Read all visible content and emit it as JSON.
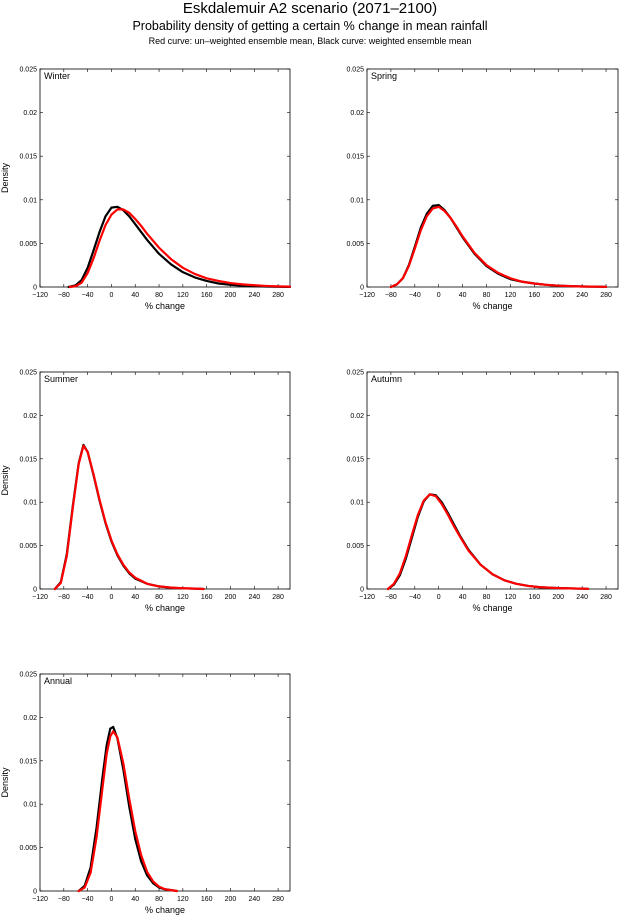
{
  "title": "Eskdalemuir A2 scenario (2071–2100)",
  "subtitle": "Probability density of getting a certain % change in mean rainfall",
  "note": "Red curve: un–weighted ensemble mean, Black curve: weighted ensemble mean",
  "colors": {
    "unweighted": "#ff0000",
    "weighted": "#000000",
    "axes": "#000000"
  },
  "chart_data": [
    {
      "type": "line",
      "panel_label": "Winter",
      "xlabel": "% change",
      "ylabel": "Density",
      "xlim": [
        -120,
        300
      ],
      "ylim": [
        0,
        0.025
      ],
      "xticks": [
        "−120",
        "−80",
        "−40",
        "0",
        "40",
        "80",
        "120",
        "160",
        "200",
        "240",
        "280"
      ],
      "yticks": [
        "0",
        "0.005",
        "0.01",
        "0.015",
        "0.02",
        "0.025"
      ],
      "series": [
        {
          "color": "#000000",
          "x": [
            -72,
            -60,
            -50,
            -40,
            -30,
            -20,
            -10,
            0,
            10,
            20,
            30,
            40,
            50,
            60,
            80,
            100,
            120,
            140,
            160,
            180,
            200,
            220,
            240,
            260,
            280,
            300
          ],
          "y": [
            0,
            0.0002,
            0.0008,
            0.0022,
            0.0042,
            0.0063,
            0.0081,
            0.0091,
            0.0092,
            0.0088,
            0.0081,
            0.0072,
            0.0063,
            0.0054,
            0.0038,
            0.0026,
            0.0017,
            0.0011,
            0.0007,
            0.0004,
            0.00025,
            0.00015,
            0.0001,
            5e-05,
            3e-05,
            1e-05
          ]
        },
        {
          "color": "#ff0000",
          "x": [
            -70,
            -60,
            -50,
            -40,
            -30,
            -20,
            -10,
            0,
            10,
            20,
            30,
            40,
            50,
            60,
            80,
            100,
            120,
            140,
            160,
            180,
            200,
            220,
            240,
            260,
            280,
            300
          ],
          "y": [
            0,
            0.0001,
            0.0005,
            0.0016,
            0.0033,
            0.0053,
            0.0071,
            0.0083,
            0.0089,
            0.0089,
            0.0085,
            0.0078,
            0.007,
            0.0061,
            0.0045,
            0.0032,
            0.0022,
            0.0015,
            0.001,
            0.0007,
            0.00045,
            0.0003,
            0.0002,
            0.00012,
            7e-05,
            4e-05
          ]
        }
      ]
    },
    {
      "type": "line",
      "panel_label": "Spring",
      "xlabel": "% change",
      "ylabel": "",
      "xlim": [
        -120,
        300
      ],
      "ylim": [
        0,
        0.025
      ],
      "xticks": [
        "−120",
        "−80",
        "−40",
        "0",
        "40",
        "80",
        "120",
        "160",
        "200",
        "240",
        "280"
      ],
      "yticks": [
        "0",
        "0.005",
        "0.01",
        "0.015",
        "0.02",
        "0.025"
      ],
      "series": [
        {
          "color": "#000000",
          "x": [
            -80,
            -70,
            -60,
            -50,
            -40,
            -30,
            -20,
            -10,
            0,
            10,
            20,
            30,
            40,
            60,
            80,
            100,
            120,
            140,
            160,
            180,
            200,
            240,
            280
          ],
          "y": [
            0,
            0.0003,
            0.001,
            0.0025,
            0.0046,
            0.0068,
            0.0084,
            0.0093,
            0.0094,
            0.0088,
            0.0079,
            0.0068,
            0.0057,
            0.0038,
            0.0024,
            0.0015,
            0.0009,
            0.0006,
            0.0004,
            0.00025,
            0.00015,
            6e-05,
            2e-05
          ]
        },
        {
          "color": "#ff0000",
          "x": [
            -80,
            -70,
            -60,
            -50,
            -40,
            -30,
            -20,
            -10,
            0,
            10,
            20,
            30,
            40,
            60,
            80,
            100,
            120,
            140,
            160,
            180,
            200,
            240,
            280
          ],
          "y": [
            0,
            0.0003,
            0.001,
            0.0024,
            0.0044,
            0.0065,
            0.0081,
            0.009,
            0.0092,
            0.0087,
            0.0079,
            0.0069,
            0.0058,
            0.0039,
            0.0025,
            0.0016,
            0.001,
            0.0006,
            0.0004,
            0.00025,
            0.00015,
            6e-05,
            2e-05
          ]
        }
      ]
    },
    {
      "type": "line",
      "panel_label": "Summer",
      "xlabel": "% change",
      "ylabel": "Density",
      "xlim": [
        -120,
        300
      ],
      "ylim": [
        0,
        0.025
      ],
      "xticks": [
        "−120",
        "−80",
        "−40",
        "0",
        "40",
        "80",
        "120",
        "160",
        "200",
        "240",
        "280"
      ],
      "yticks": [
        "0",
        "0.005",
        "0.01",
        "0.015",
        "0.02",
        "0.025"
      ],
      "series": [
        {
          "color": "#000000",
          "x": [
            -95,
            -85,
            -75,
            -65,
            -55,
            -47,
            -40,
            -30,
            -20,
            -10,
            0,
            10,
            20,
            30,
            40,
            60,
            80,
            100,
            120,
            140,
            155
          ],
          "y": [
            0,
            0.0008,
            0.004,
            0.0095,
            0.0145,
            0.0166,
            0.0158,
            0.0131,
            0.0102,
            0.0076,
            0.0055,
            0.0039,
            0.0027,
            0.0018,
            0.0012,
            0.0006,
            0.0003,
            0.00015,
            8e-05,
            4e-05,
            0
          ]
        },
        {
          "color": "#ff0000",
          "x": [
            -95,
            -85,
            -75,
            -65,
            -55,
            -47,
            -40,
            -30,
            -20,
            -10,
            0,
            10,
            20,
            30,
            40,
            60,
            80,
            100,
            120,
            140,
            155
          ],
          "y": [
            0,
            0.0007,
            0.0038,
            0.0093,
            0.0144,
            0.0165,
            0.0158,
            0.0132,
            0.0103,
            0.0077,
            0.0056,
            0.004,
            0.0028,
            0.0019,
            0.0013,
            0.0006,
            0.0003,
            0.00016,
            9e-05,
            4e-05,
            0
          ]
        }
      ]
    },
    {
      "type": "line",
      "panel_label": "Autumn",
      "xlabel": "% change",
      "ylabel": "",
      "xlim": [
        -120,
        300
      ],
      "ylim": [
        0,
        0.025
      ],
      "xticks": [
        "−120",
        "−80",
        "−40",
        "0",
        "40",
        "80",
        "120",
        "160",
        "200",
        "240",
        "280"
      ],
      "yticks": [
        "0",
        "0.005",
        "0.01",
        "0.015",
        "0.02",
        "0.025"
      ],
      "series": [
        {
          "color": "#000000",
          "x": [
            -85,
            -75,
            -65,
            -55,
            -45,
            -35,
            -25,
            -15,
            -5,
            5,
            15,
            25,
            35,
            50,
            70,
            90,
            110,
            130,
            150,
            170,
            200,
            250
          ],
          "y": [
            0,
            0.0005,
            0.0016,
            0.0035,
            0.0059,
            0.0083,
            0.0101,
            0.0109,
            0.0108,
            0.01,
            0.0088,
            0.0075,
            0.0062,
            0.0045,
            0.0028,
            0.0017,
            0.001,
            0.0006,
            0.00035,
            0.0002,
            0.0001,
            2e-05
          ]
        },
        {
          "color": "#ff0000",
          "x": [
            -85,
            -75,
            -65,
            -55,
            -45,
            -35,
            -25,
            -15,
            -5,
            5,
            15,
            25,
            35,
            50,
            70,
            90,
            110,
            130,
            150,
            170,
            200,
            250
          ],
          "y": [
            0,
            0.0006,
            0.0018,
            0.0038,
            0.0062,
            0.0085,
            0.0102,
            0.0109,
            0.0107,
            0.0098,
            0.0086,
            0.0073,
            0.0061,
            0.0044,
            0.0028,
            0.0017,
            0.001,
            0.0006,
            0.00035,
            0.0002,
            0.0001,
            2e-05
          ]
        }
      ]
    },
    {
      "type": "line",
      "panel_label": "Annual",
      "xlabel": "% change",
      "ylabel": "Density",
      "xlim": [
        -120,
        300
      ],
      "ylim": [
        0,
        0.025
      ],
      "xticks": [
        "−120",
        "−80",
        "−40",
        "0",
        "40",
        "80",
        "120",
        "160",
        "200",
        "240",
        "280"
      ],
      "yticks": [
        "0",
        "0.005",
        "0.01",
        "0.015",
        "0.02",
        "0.025"
      ],
      "series": [
        {
          "color": "#000000",
          "x": [
            -55,
            -45,
            -35,
            -25,
            -15,
            -8,
            -2,
            3,
            10,
            20,
            30,
            40,
            50,
            60,
            70,
            80,
            90,
            100,
            110
          ],
          "y": [
            0,
            0.0006,
            0.0027,
            0.0073,
            0.0131,
            0.0168,
            0.0187,
            0.0189,
            0.0176,
            0.014,
            0.0097,
            0.006,
            0.0034,
            0.0018,
            0.0009,
            0.0004,
            0.0002,
            0.0001,
            0
          ]
        },
        {
          "color": "#ff0000",
          "x": [
            -55,
            -45,
            -35,
            -25,
            -15,
            -8,
            -2,
            3,
            10,
            20,
            30,
            40,
            50,
            60,
            70,
            80,
            90,
            100,
            110
          ],
          "y": [
            0,
            0.0004,
            0.0021,
            0.0062,
            0.0119,
            0.0158,
            0.0178,
            0.0184,
            0.0177,
            0.0147,
            0.0106,
            0.0069,
            0.0041,
            0.0022,
            0.0011,
            0.0005,
            0.0002,
            0.0001,
            0
          ]
        }
      ]
    }
  ]
}
